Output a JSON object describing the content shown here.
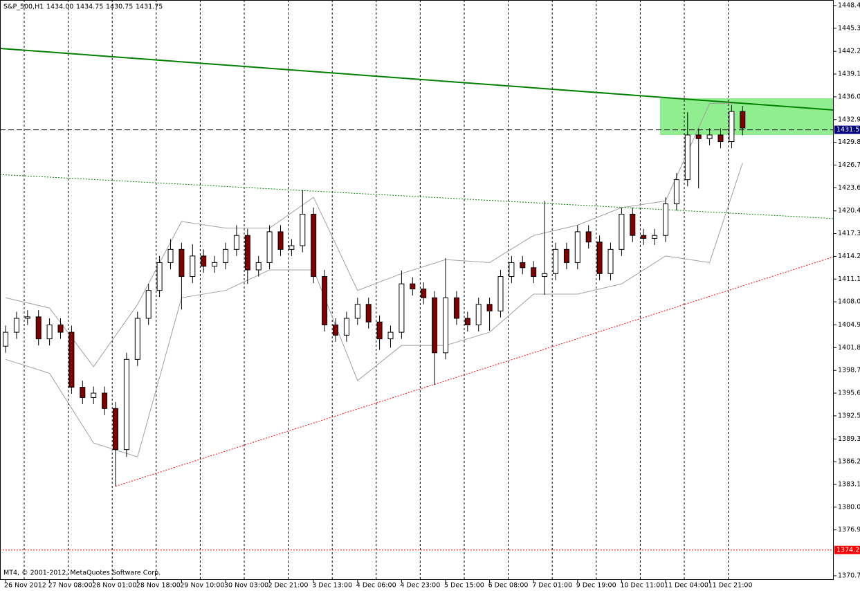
{
  "chart_data": {
    "type": "candlestick",
    "header": {
      "symbol": "S&P_500,H1",
      "ohlc": [
        "1434.00",
        "1434.75",
        "1430.75",
        "1431.75"
      ]
    },
    "footer": "MT4, © 2001-2012, MetaQuotes Software Corp.",
    "categories": [
      "26 Nov 2012",
      null,
      null,
      null,
      "27 Nov 08:00",
      null,
      null,
      null,
      "28 Nov 01:00",
      null,
      null,
      null,
      "28 Nov 18:00",
      null,
      null,
      null,
      "29 Nov 10:00",
      null,
      null,
      null,
      "30 Nov 03:00",
      null,
      null,
      null,
      "2 Dec 21:00",
      null,
      null,
      null,
      "3 Dec 13:00",
      null,
      null,
      null,
      "4 Dec 06:00",
      null,
      null,
      null,
      "4 Dec 23:00",
      null,
      null,
      null,
      "5 Dec 15:00",
      null,
      null,
      null,
      "6 Dec 08:00",
      null,
      null,
      null,
      "7 Dec 01:00",
      null,
      null,
      null,
      "9 Dec 19:00",
      null,
      null,
      null,
      "10 Dec 11:00",
      null,
      null,
      null,
      "11 Dec 04:00",
      null,
      null,
      null,
      "11 Dec 21:00",
      null,
      null,
      null
    ],
    "open": [
      1402.0,
      1403.9,
      1405.8,
      1406.0,
      1403.0,
      1404.9,
      1403.9,
      1396.4,
      1395.0,
      1395.6,
      1393.5,
      1387.9,
      1400.2,
      1405.8,
      1409.6,
      1413.4,
      1415.2,
      1411.5,
      1414.3,
      1412.9,
      1413.4,
      1415.2,
      1417.1,
      1412.4,
      1413.4,
      1417.6,
      1415.2,
      1415.7,
      1420.0,
      1411.5,
      1404.9,
      1403.5,
      1405.8,
      1407.7,
      1405.3,
      1403.0,
      1403.9,
      1410.5,
      1409.8,
      1408.6,
      1401.1,
      1408.6,
      1405.8,
      1404.9,
      1407.7,
      1406.8,
      1411.5,
      1413.4,
      1412.7,
      1411.5,
      1411.9,
      1415.2,
      1413.4,
      1417.6,
      1416.2,
      1411.9,
      1415.2,
      1420.0,
      1417.1,
      1416.7,
      1417.1,
      1421.4,
      1424.7,
      1430.8,
      1430.3,
      1430.8,
      1429.9,
      1434.0
    ],
    "high": [
      1404.8,
      1406.7,
      1406.9,
      1406.9,
      1405.8,
      1405.8,
      1404.8,
      1397.3,
      1396.5,
      1396.5,
      1394.4,
      1401.1,
      1406.7,
      1410.5,
      1414.3,
      1416.6,
      1416.1,
      1415.9,
      1415.2,
      1414.3,
      1416.1,
      1418.5,
      1418.0,
      1414.3,
      1418.5,
      1418.5,
      1416.6,
      1423.3,
      1420.9,
      1412.4,
      1405.8,
      1406.7,
      1408.6,
      1408.6,
      1406.2,
      1404.8,
      1412.3,
      1411.4,
      1410.7,
      1409.5,
      1414.0,
      1409.5,
      1406.7,
      1408.6,
      1408.6,
      1412.4,
      1414.3,
      1414.3,
      1413.6,
      1421.8,
      1416.1,
      1416.1,
      1418.5,
      1418.5,
      1417.1,
      1416.1,
      1420.9,
      1420.9,
      1418.0,
      1418.0,
      1422.3,
      1425.6,
      1433.9,
      1431.7,
      1431.7,
      1431.7,
      1434.9,
      1434.75
    ],
    "low": [
      1401.1,
      1403.0,
      1404.9,
      1402.1,
      1402.1,
      1403.0,
      1395.5,
      1394.1,
      1394.1,
      1392.6,
      1382.9,
      1386.9,
      1399.3,
      1404.9,
      1408.7,
      1412.5,
      1407.0,
      1410.6,
      1412.0,
      1412.0,
      1412.5,
      1414.3,
      1410.5,
      1411.5,
      1412.5,
      1414.3,
      1414.3,
      1414.8,
      1410.6,
      1404.0,
      1402.6,
      1402.6,
      1404.9,
      1404.4,
      1401.5,
      1401.8,
      1403.0,
      1408.9,
      1407.7,
      1396.7,
      1400.2,
      1404.9,
      1404.0,
      1404.0,
      1404.1,
      1405.9,
      1410.6,
      1411.8,
      1410.6,
      1409.0,
      1411.0,
      1412.5,
      1412.5,
      1415.3,
      1411.0,
      1411.0,
      1414.3,
      1416.2,
      1415.8,
      1415.8,
      1416.2,
      1420.5,
      1423.8,
      1423.5,
      1429.4,
      1429.0,
      1429.0,
      1430.75
    ],
    "close": [
      1403.9,
      1405.8,
      1406.0,
      1403.0,
      1404.9,
      1403.9,
      1396.4,
      1395.0,
      1395.6,
      1393.5,
      1387.9,
      1400.2,
      1405.8,
      1409.6,
      1413.4,
      1415.2,
      1411.5,
      1414.3,
      1412.9,
      1413.4,
      1415.2,
      1417.1,
      1412.4,
      1413.4,
      1417.6,
      1415.2,
      1415.7,
      1420.0,
      1411.5,
      1404.9,
      1403.5,
      1405.8,
      1407.7,
      1405.3,
      1403.0,
      1403.9,
      1410.5,
      1409.8,
      1408.6,
      1401.1,
      1408.6,
      1405.8,
      1404.9,
      1407.7,
      1406.8,
      1411.5,
      1413.4,
      1412.7,
      1411.5,
      1411.9,
      1415.2,
      1413.4,
      1417.6,
      1416.2,
      1411.9,
      1415.2,
      1420.0,
      1417.1,
      1416.7,
      1417.1,
      1421.4,
      1424.7,
      1430.8,
      1430.3,
      1430.8,
      1429.9,
      1434.0,
      1431.75
    ],
    "up_color": "#ffffff",
    "down_color": "#800000",
    "wick_color": "#000000",
    "bands": {
      "color": "#a0a0a0",
      "x": [
        0,
        4,
        8,
        12,
        16,
        20,
        24,
        28,
        32,
        36,
        40,
        44,
        48,
        52,
        56,
        60,
        64,
        67
      ],
      "upper": [
        1408.6,
        1407.2,
        1399.2,
        1407.7,
        1419.0,
        1418.1,
        1418.1,
        1422.3,
        1409.6,
        1411.9,
        1413.8,
        1413.4,
        1417.1,
        1418.5,
        1420.9,
        1421.8,
        1435.1,
        1435.1
      ],
      "lower": [
        1400.2,
        1398.3,
        1388.8,
        1386.9,
        1408.6,
        1409.6,
        1412.4,
        1412.4,
        1397.3,
        1402.1,
        1402.1,
        1403.9,
        1409.1,
        1409.1,
        1410.5,
        1414.3,
        1413.4,
        1427.0
      ]
    },
    "trendlines": [
      {
        "x": [
          -0.5,
          75.3
        ],
        "y": [
          1442.6,
          1434.2
        ],
        "color": "#008000",
        "style": "solid"
      },
      {
        "x": [
          -0.5,
          75.3
        ],
        "y": [
          1425.4,
          1419.4
        ],
        "color": "#008000",
        "style": "dotted"
      },
      {
        "x": [
          10,
          75.3
        ],
        "y": [
          1382.9,
          1414.2
        ],
        "color": "#ff0000",
        "style": "dotted"
      }
    ],
    "zone": {
      "x": [
        59.5,
        75.3
      ],
      "y": [
        1430.8,
        1435.8
      ],
      "color": "#90ee90"
    },
    "levels": [
      {
        "value": 1431.5,
        "label": "1431.50",
        "color": "#000000",
        "style": "dashed",
        "label_bg": "#000080"
      },
      {
        "value": 1374.21,
        "label": "1374.21",
        "color": "#ff0000",
        "style": "dotted",
        "label_bg": "#ff0000"
      }
    ],
    "ylim": [
      1370.13,
      1449.2
    ],
    "yticks": [
      {
        "value": 1448.45,
        "label": "1448.45"
      },
      {
        "value": 1445.35,
        "label": "1445.35"
      },
      {
        "value": 1442.2,
        "label": "1442.20"
      },
      {
        "value": 1439.1,
        "label": "1439.10"
      },
      {
        "value": 1436.0,
        "label": "1436.00"
      },
      {
        "value": 1432.9,
        "label": "1432.90"
      },
      {
        "value": 1429.8,
        "label": "1429.80"
      },
      {
        "value": 1426.7,
        "label": "1426.70"
      },
      {
        "value": 1423.6,
        "label": "1423.60"
      },
      {
        "value": 1420.45,
        "label": "1420.45"
      },
      {
        "value": 1417.35,
        "label": "1417.35"
      },
      {
        "value": 1414.25,
        "label": "1414.25"
      },
      {
        "value": 1411.15,
        "label": "1411.15"
      },
      {
        "value": 1408.05,
        "label": "1408.05"
      },
      {
        "value": 1404.9,
        "label": "1404.90"
      },
      {
        "value": 1401.8,
        "label": "1401.80"
      },
      {
        "value": 1398.7,
        "label": "1398.70"
      },
      {
        "value": 1395.6,
        "label": "1395.60"
      },
      {
        "value": 1392.5,
        "label": "1392.50"
      },
      {
        "value": 1389.35,
        "label": "1389.35"
      },
      {
        "value": 1386.25,
        "label": "1386.25"
      },
      {
        "value": 1383.15,
        "label": "1383.15"
      },
      {
        "value": 1380.05,
        "label": "1380.05"
      },
      {
        "value": 1376.95,
        "label": "1376.95"
      },
      {
        "value": 1370.7,
        "label": "1370.70"
      }
    ],
    "grid": true
  }
}
